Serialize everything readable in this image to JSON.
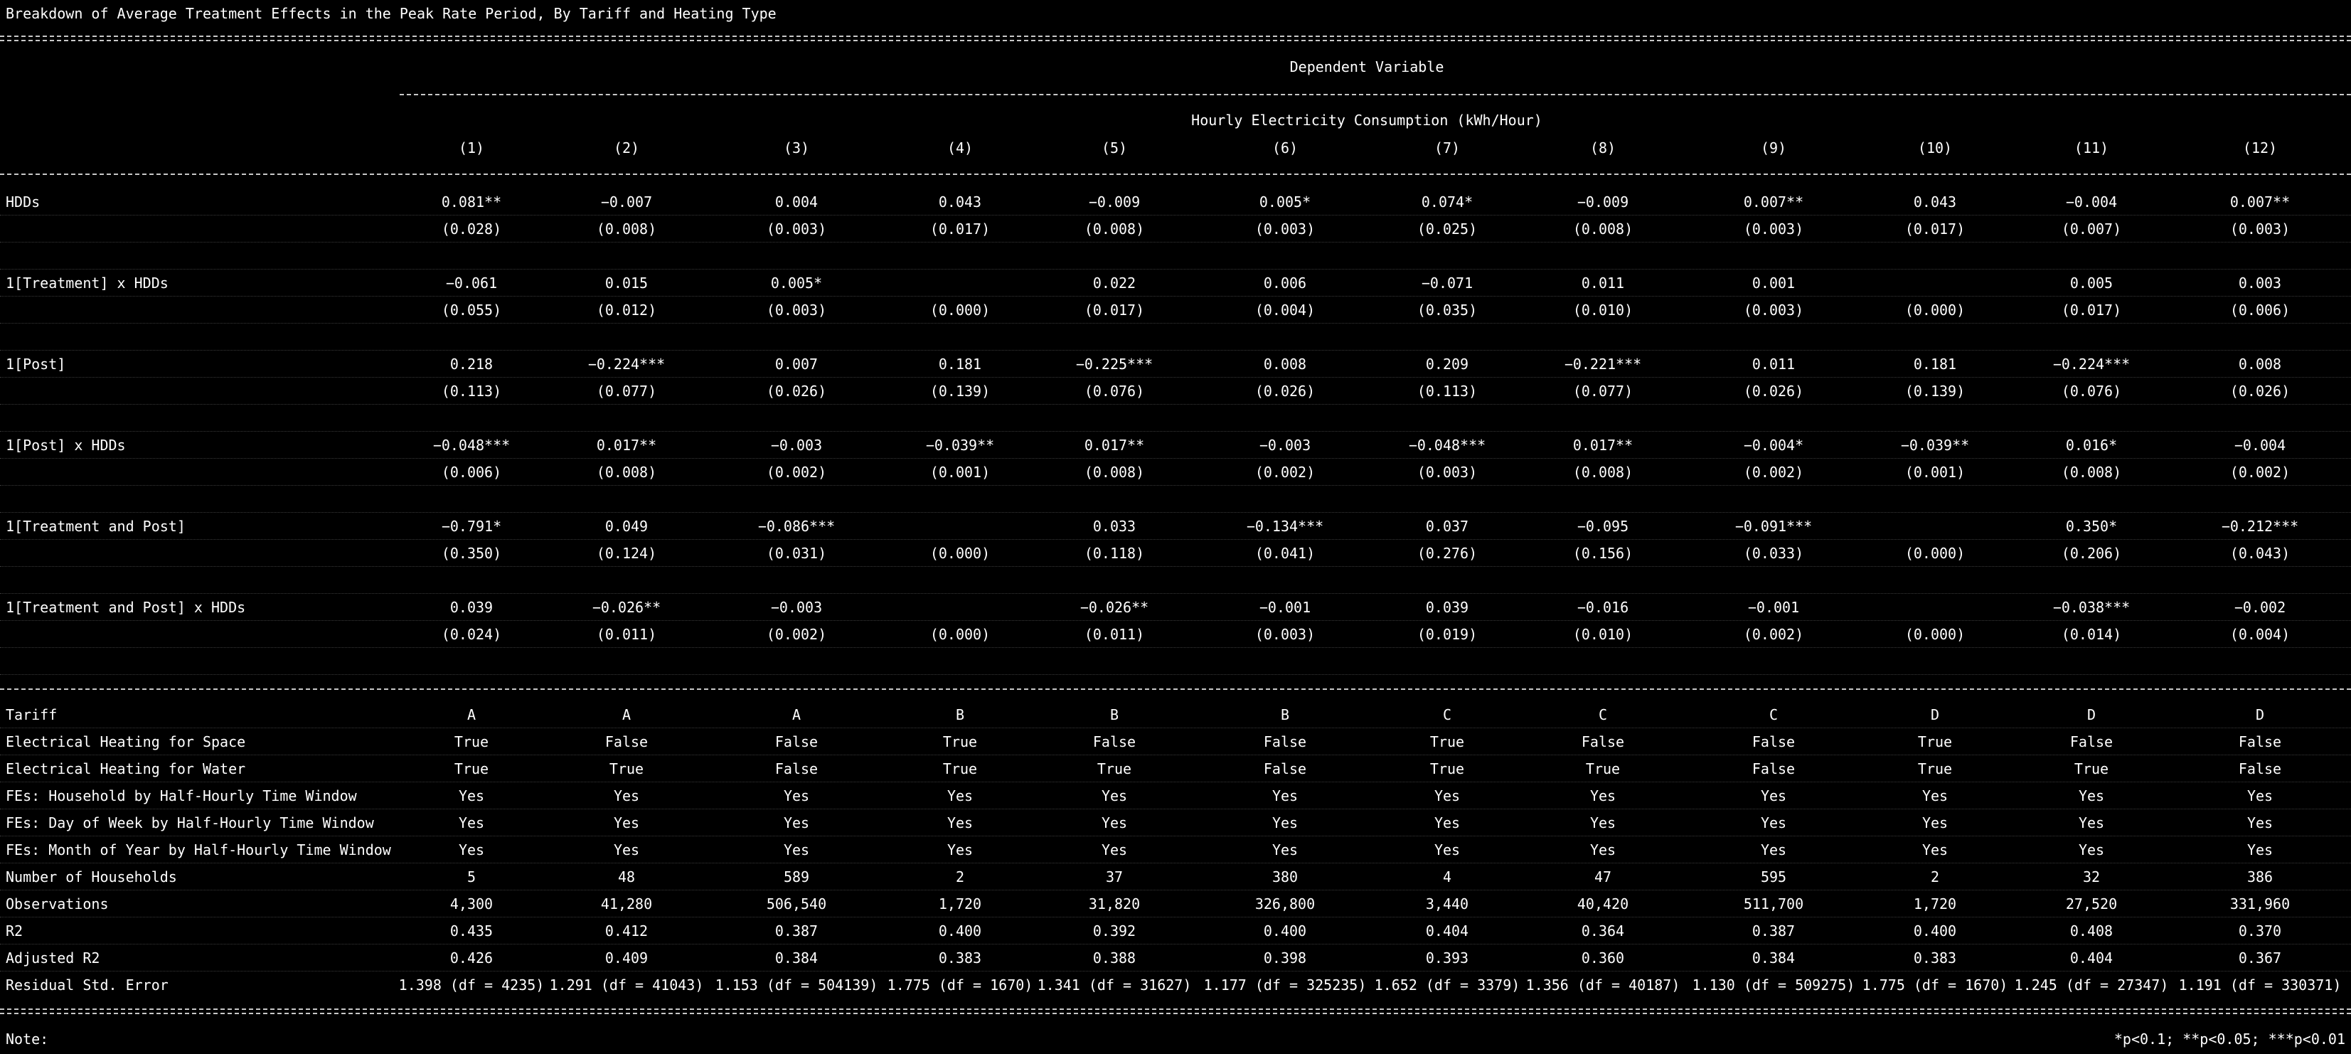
{
  "title": "Breakdown of Average Treatment Effects in the Peak Rate Period, By Tariff and Heating Type",
  "dependent_variable_header": "Dependent Variable",
  "dependent_variable": "Hourly Electricity Consumption (kWh/Hour)",
  "columns": [
    "(1)",
    "(2)",
    "(3)",
    "(4)",
    "(5)",
    "(6)",
    "(7)",
    "(8)",
    "(9)",
    "(10)",
    "(11)",
    "(12)"
  ],
  "coefficients": [
    {
      "label": "HDDs",
      "coef": [
        "0.081**",
        "−0.007",
        "0.004",
        "0.043",
        "−0.009",
        "0.005*",
        "0.074*",
        "−0.009",
        "0.007**",
        "0.043",
        "−0.004",
        "0.007**"
      ],
      "se": [
        "(0.028)",
        "(0.008)",
        "(0.003)",
        "(0.017)",
        "(0.008)",
        "(0.003)",
        "(0.025)",
        "(0.008)",
        "(0.003)",
        "(0.017)",
        "(0.007)",
        "(0.003)"
      ]
    },
    {
      "label": "1[Treatment] x HDDs",
      "coef": [
        "−0.061",
        "0.015",
        "0.005*",
        "",
        "0.022",
        "0.006",
        "−0.071",
        "0.011",
        "0.001",
        "",
        "0.005",
        "0.003"
      ],
      "se": [
        "(0.055)",
        "(0.012)",
        "(0.003)",
        "(0.000)",
        "(0.017)",
        "(0.004)",
        "(0.035)",
        "(0.010)",
        "(0.003)",
        "(0.000)",
        "(0.017)",
        "(0.006)"
      ]
    },
    {
      "label": "1[Post]",
      "coef": [
        "0.218",
        "−0.224***",
        "0.007",
        "0.181",
        "−0.225***",
        "0.008",
        "0.209",
        "−0.221***",
        "0.011",
        "0.181",
        "−0.224***",
        "0.008"
      ],
      "se": [
        "(0.113)",
        "(0.077)",
        "(0.026)",
        "(0.139)",
        "(0.076)",
        "(0.026)",
        "(0.113)",
        "(0.077)",
        "(0.026)",
        "(0.139)",
        "(0.076)",
        "(0.026)"
      ]
    },
    {
      "label": "1[Post] x HDDs",
      "coef": [
        "−0.048***",
        "0.017**",
        "−0.003",
        "−0.039**",
        "0.017**",
        "−0.003",
        "−0.048***",
        "0.017**",
        "−0.004*",
        "−0.039**",
        "0.016*",
        "−0.004"
      ],
      "se": [
        "(0.006)",
        "(0.008)",
        "(0.002)",
        "(0.001)",
        "(0.008)",
        "(0.002)",
        "(0.003)",
        "(0.008)",
        "(0.002)",
        "(0.001)",
        "(0.008)",
        "(0.002)"
      ]
    },
    {
      "label": "1[Treatment and Post]",
      "coef": [
        "−0.791*",
        "0.049",
        "−0.086***",
        "",
        "0.033",
        "−0.134***",
        "0.037",
        "−0.095",
        "−0.091***",
        "",
        "0.350*",
        "−0.212***"
      ],
      "se": [
        "(0.350)",
        "(0.124)",
        "(0.031)",
        "(0.000)",
        "(0.118)",
        "(0.041)",
        "(0.276)",
        "(0.156)",
        "(0.033)",
        "(0.000)",
        "(0.206)",
        "(0.043)"
      ]
    },
    {
      "label": "1[Treatment and Post] x HDDs",
      "coef": [
        "0.039",
        "−0.026**",
        "−0.003",
        "",
        "−0.026**",
        "−0.001",
        "0.039",
        "−0.016",
        "−0.001",
        "",
        "−0.038***",
        "−0.002"
      ],
      "se": [
        "(0.024)",
        "(0.011)",
        "(0.002)",
        "(0.000)",
        "(0.011)",
        "(0.003)",
        "(0.019)",
        "(0.010)",
        "(0.002)",
        "(0.000)",
        "(0.014)",
        "(0.004)"
      ]
    }
  ],
  "footer_rows": [
    {
      "label": "Tariff",
      "values": [
        "A",
        "A",
        "A",
        "B",
        "B",
        "B",
        "C",
        "C",
        "C",
        "D",
        "D",
        "D"
      ]
    },
    {
      "label": "Electrical Heating for Space",
      "values": [
        "True",
        "False",
        "False",
        "True",
        "False",
        "False",
        "True",
        "False",
        "False",
        "True",
        "False",
        "False"
      ]
    },
    {
      "label": "Electrical Heating for Water",
      "values": [
        "True",
        "True",
        "False",
        "True",
        "True",
        "False",
        "True",
        "True",
        "False",
        "True",
        "True",
        "False"
      ]
    },
    {
      "label": "FEs: Household by Half-Hourly Time Window",
      "values": [
        "Yes",
        "Yes",
        "Yes",
        "Yes",
        "Yes",
        "Yes",
        "Yes",
        "Yes",
        "Yes",
        "Yes",
        "Yes",
        "Yes"
      ]
    },
    {
      "label": "FEs: Day of Week by Half-Hourly Time Window",
      "values": [
        "Yes",
        "Yes",
        "Yes",
        "Yes",
        "Yes",
        "Yes",
        "Yes",
        "Yes",
        "Yes",
        "Yes",
        "Yes",
        "Yes"
      ]
    },
    {
      "label": "FEs: Month of Year by Half-Hourly Time Window",
      "values": [
        "Yes",
        "Yes",
        "Yes",
        "Yes",
        "Yes",
        "Yes",
        "Yes",
        "Yes",
        "Yes",
        "Yes",
        "Yes",
        "Yes"
      ]
    },
    {
      "label": "Number of Households",
      "values": [
        "5",
        "48",
        "589",
        "2",
        "37",
        "380",
        "4",
        "47",
        "595",
        "2",
        "32",
        "386"
      ]
    },
    {
      "label": "Observations",
      "values": [
        "4,300",
        "41,280",
        "506,540",
        "1,720",
        "31,820",
        "326,800",
        "3,440",
        "40,420",
        "511,700",
        "1,720",
        "27,520",
        "331,960"
      ]
    },
    {
      "label": "R2",
      "values": [
        "0.435",
        "0.412",
        "0.387",
        "0.400",
        "0.392",
        "0.400",
        "0.404",
        "0.364",
        "0.387",
        "0.400",
        "0.408",
        "0.370"
      ]
    },
    {
      "label": "Adjusted R2",
      "values": [
        "0.426",
        "0.409",
        "0.384",
        "0.383",
        "0.388",
        "0.398",
        "0.393",
        "0.360",
        "0.384",
        "0.383",
        "0.404",
        "0.367"
      ]
    },
    {
      "label": "Residual Std. Error",
      "values": [
        "1.398 (df = 4235)",
        "1.291 (df = 41043)",
        "1.153 (df = 504139)",
        "1.775 (df = 1670)",
        "1.341 (df = 31627)",
        "1.177 (df = 325235)",
        "1.652 (df = 3379)",
        "1.356 (df = 40187)",
        "1.130 (df = 509275)",
        "1.775 (df = 1670)",
        "1.245 (df = 27347)",
        "1.191 (df = 330371)"
      ]
    }
  ],
  "note_label": "Note:",
  "note_text": "*p<0.1; **p<0.05; ***p<0.01"
}
